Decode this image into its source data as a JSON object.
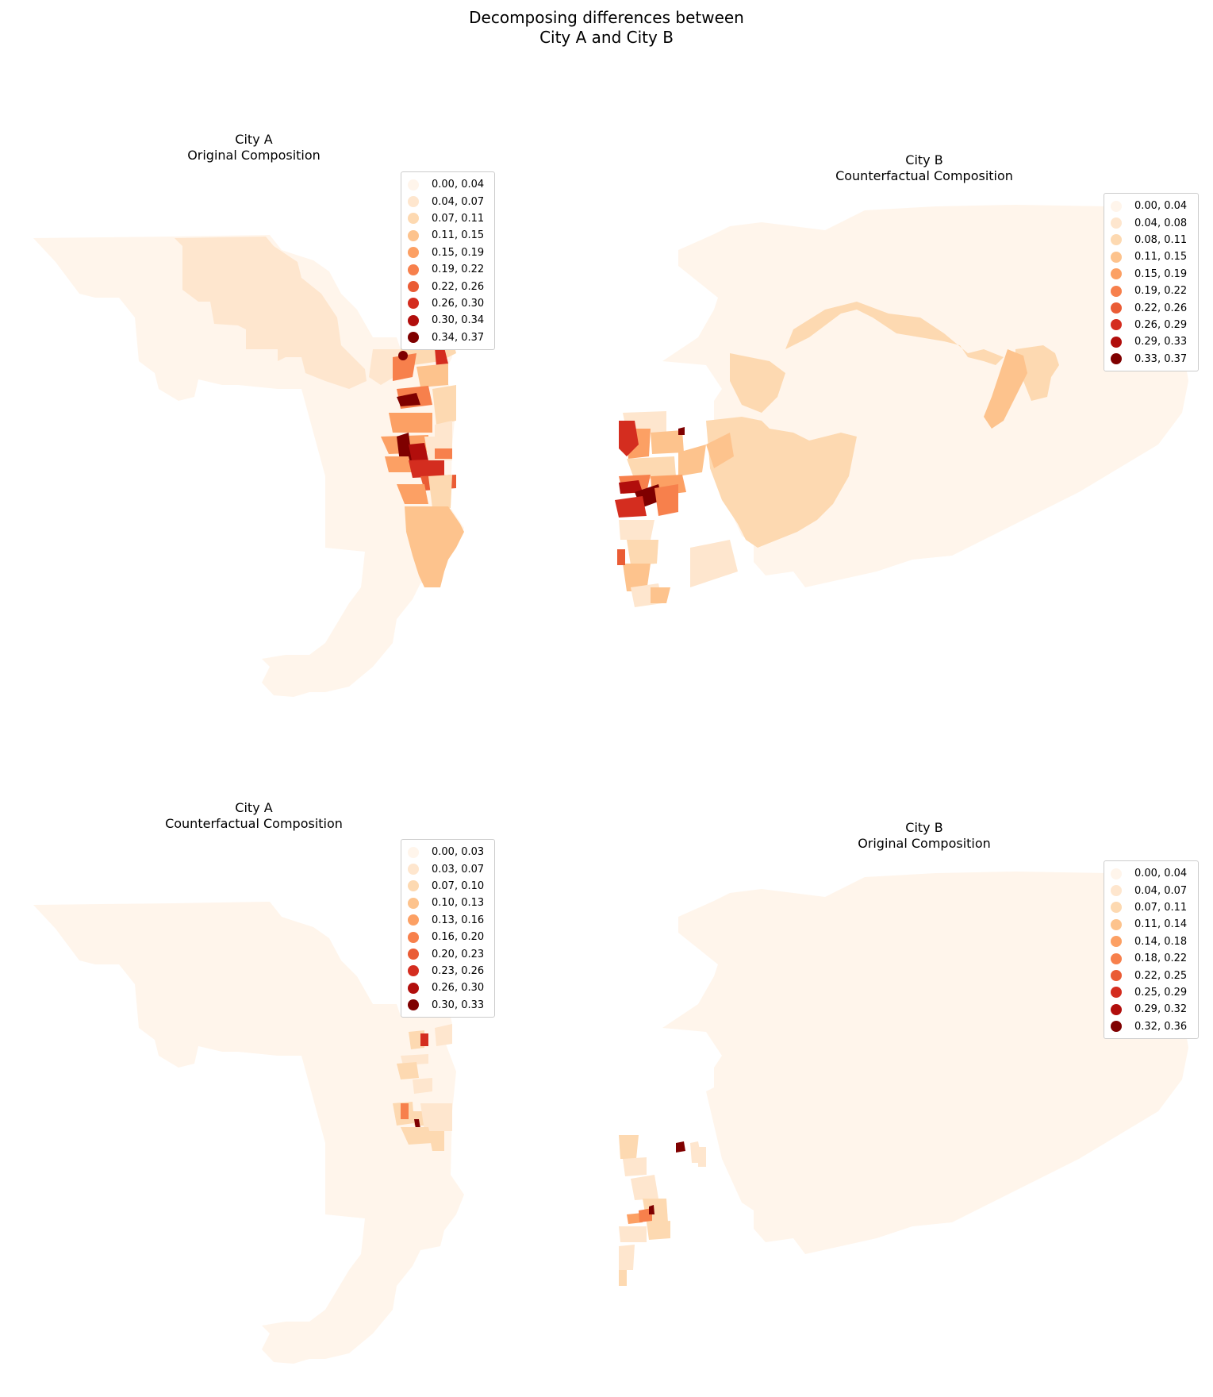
{
  "figure": {
    "title_line1": "Decomposing differences between",
    "title_line2": "City A and City B"
  },
  "colors": {
    "base_light": "#fff5eb",
    "scale": [
      "#fff5eb",
      "#fee6ce",
      "#fdd9b1",
      "#fdc38d",
      "#fca064",
      "#f7804c",
      "#ea5c35",
      "#d42d1f",
      "#b10e0c",
      "#7f0000"
    ]
  },
  "panels": [
    {
      "title_line1": "City A",
      "title_line2": "Original Composition",
      "legend": [
        "0.00, 0.04",
        "0.04, 0.07",
        "0.07, 0.11",
        "0.11, 0.15",
        "0.15, 0.19",
        "0.19, 0.22",
        "0.22, 0.26",
        "0.26, 0.30",
        "0.30, 0.34",
        "0.34, 0.37"
      ]
    },
    {
      "title_line1": "City B",
      "title_line2": "Counterfactual Composition",
      "legend": [
        "0.00, 0.04",
        "0.04, 0.08",
        "0.08, 0.11",
        "0.11, 0.15",
        "0.15, 0.19",
        "0.19, 0.22",
        "0.22, 0.26",
        "0.26, 0.29",
        "0.29, 0.33",
        "0.33, 0.37"
      ]
    },
    {
      "title_line1": "City A",
      "title_line2": "Counterfactual Composition",
      "legend": [
        "0.00, 0.03",
        "0.03, 0.07",
        "0.07, 0.10",
        "0.10, 0.13",
        "0.13, 0.16",
        "0.16, 0.20",
        "0.20, 0.23",
        "0.23, 0.26",
        "0.26, 0.30",
        "0.30, 0.33"
      ]
    },
    {
      "title_line1": "City B",
      "title_line2": "Original Composition",
      "legend": [
        "0.00, 0.04",
        "0.04, 0.07",
        "0.07, 0.11",
        "0.11, 0.14",
        "0.14, 0.18",
        "0.18, 0.22",
        "0.22, 0.25",
        "0.25, 0.29",
        "0.29, 0.32",
        "0.32, 0.36"
      ]
    }
  ]
}
